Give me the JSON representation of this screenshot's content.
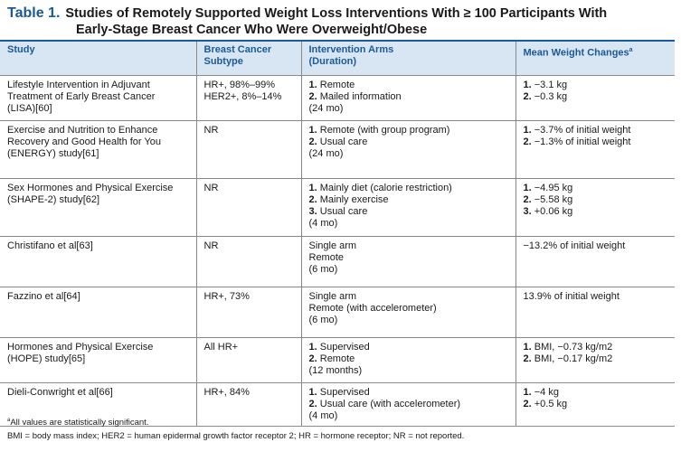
{
  "title": {
    "label": "Table 1.",
    "line1": "Studies of Remotely Supported Weight Loss Interventions With ≥ 100 Participants With",
    "line2": "Early-Stage Breast Cancer Who Were Overweight/Obese"
  },
  "columns": {
    "study": "Study",
    "subtype_l1": "Breast Cancer",
    "subtype_l2": "Subtype",
    "arms_l1": "Intervention Arms",
    "arms_l2": "(Duration)",
    "weight": "Mean Weight Changes",
    "weight_note_mark": "a"
  },
  "rows": [
    {
      "study": [
        "Lifestyle Intervention in Adjuvant",
        "Treatment of Early Breast Cancer",
        "(LISA)[60]"
      ],
      "subtype": [
        "HR+, 98%–99%",
        "HER2+, 8%–14%"
      ],
      "arms": [
        {
          "n": "1.",
          "t": "Remote"
        },
        {
          "n": "2.",
          "t": "Mailed information"
        },
        {
          "n": "",
          "t": "(24 mo)"
        }
      ],
      "weight": [
        {
          "n": "1.",
          "t": "−3.1 kg"
        },
        {
          "n": "2.",
          "t": "−0.3 kg"
        }
      ]
    },
    {
      "study": [
        "Exercise and Nutrition to Enhance",
        "Recovery and Good Health for You",
        "(ENERGY) study[61]"
      ],
      "subtype": [
        "NR"
      ],
      "arms": [
        {
          "n": "1.",
          "t": "Remote (with group program)"
        },
        {
          "n": "2.",
          "t": "Usual care"
        },
        {
          "n": "",
          "t": "(24 mo)"
        }
      ],
      "weight": [
        {
          "n": "1.",
          "t": "−3.7% of initial weight"
        },
        {
          "n": "2.",
          "t": "−1.3% of initial weight"
        }
      ]
    },
    {
      "study": [
        "Sex Hormones and Physical Exercise",
        "(SHAPE-2) study[62]"
      ],
      "subtype": [
        "NR"
      ],
      "arms": [
        {
          "n": "1.",
          "t": "Mainly diet (calorie restriction)"
        },
        {
          "n": "2.",
          "t": "Mainly exercise"
        },
        {
          "n": "3.",
          "t": "Usual care"
        },
        {
          "n": "",
          "t": "(4 mo)"
        }
      ],
      "weight": [
        {
          "n": "1.",
          "t": "−4.95 kg"
        },
        {
          "n": "2.",
          "t": "−5.58 kg"
        },
        {
          "n": "3.",
          "t": "+0.06 kg"
        }
      ]
    },
    {
      "study": [
        "Christifano et al[63]"
      ],
      "subtype": [
        "NR"
      ],
      "arms": [
        {
          "n": "",
          "t": "Single arm"
        },
        {
          "n": "",
          "t": "Remote"
        },
        {
          "n": "",
          "t": "(6 mo)"
        }
      ],
      "weight": [
        {
          "n": "",
          "t": "−13.2% of initial weight"
        }
      ]
    },
    {
      "study": [
        "Fazzino et al[64]"
      ],
      "subtype": [
        "HR+, 73%"
      ],
      "arms": [
        {
          "n": "",
          "t": "Single arm"
        },
        {
          "n": "",
          "t": "Remote (with accelerometer)"
        },
        {
          "n": "",
          "t": "(6 mo)"
        }
      ],
      "weight": [
        {
          "n": "",
          "t": "13.9% of initial weight"
        }
      ]
    },
    {
      "study": [
        "Hormones and Physical Exercise",
        "(HOPE) study[65]"
      ],
      "subtype": [
        "All HR+"
      ],
      "arms": [
        {
          "n": "1.",
          "t": "Supervised"
        },
        {
          "n": "2.",
          "t": "Remote"
        },
        {
          "n": "",
          "t": "(12 months)"
        }
      ],
      "weight": [
        {
          "n": "1.",
          "t": "BMI, −0.73 kg/m2"
        },
        {
          "n": "2.",
          "t": "BMI, −0.17 kg/m2"
        }
      ]
    },
    {
      "study": [
        "Dieli-Conwright et al[66]"
      ],
      "subtype": [
        "HR+, 84%"
      ],
      "arms": [
        {
          "n": "1.",
          "t": "Supervised"
        },
        {
          "n": "2.",
          "t": "Usual care (with accelerometer)"
        },
        {
          "n": "",
          "t": "(4 mo)"
        }
      ],
      "weight": [
        {
          "n": "1.",
          "t": "−4 kg"
        },
        {
          "n": "2.",
          "t": "+0.5 kg"
        }
      ]
    }
  ],
  "footnotes": {
    "mark": "a",
    "note_a": "All values are statistically significant.",
    "abbrev": "BMI = body mass index; HER2 = human epidermal growth factor receptor 2; HR = hormone receptor; NR = not reported."
  }
}
